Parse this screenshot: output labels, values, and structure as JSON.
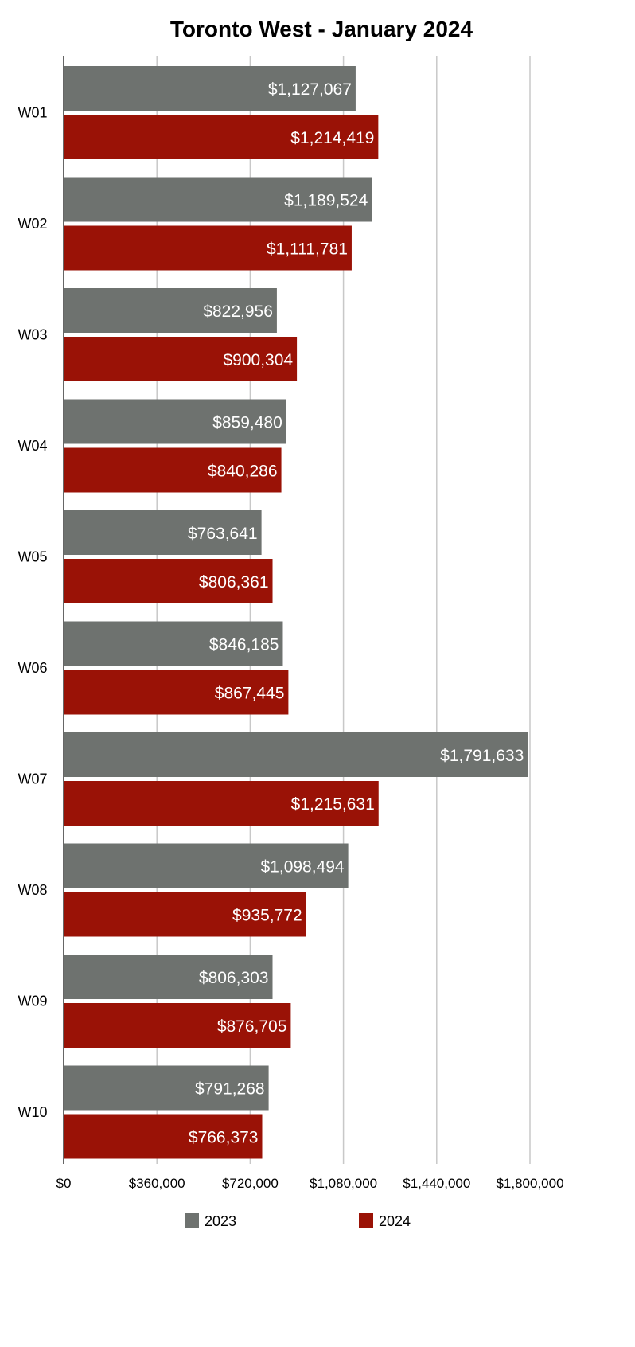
{
  "chart_data": {
    "type": "bar",
    "orientation": "horizontal",
    "title": "Toronto West - January 2024",
    "categories": [
      "W01",
      "W02",
      "W03",
      "W04",
      "W05",
      "W06",
      "W07",
      "W08",
      "W09",
      "W10"
    ],
    "series": [
      {
        "name": "2023",
        "color": "#6e726f",
        "values": [
          1127067,
          1189524,
          822956,
          859480,
          763641,
          846185,
          1791633,
          1098494,
          806303,
          791268
        ],
        "labels": [
          "$1,127,067",
          "$1,189,524",
          "$822,956",
          "$859,480",
          "$763,641",
          "$846,185",
          "$1,791,633",
          "$1,098,494",
          "$806,303",
          "$791,268"
        ]
      },
      {
        "name": "2024",
        "color": "#9a1206",
        "values": [
          1214419,
          1111781,
          900304,
          840286,
          806361,
          867445,
          1215631,
          935772,
          876705,
          766373
        ],
        "labels": [
          "$1,214,419",
          "$1,111,781",
          "$900,304",
          "$840,286",
          "$806,361",
          "$867,445",
          "$1,215,631",
          "$935,772",
          "$876,705",
          "$766,373"
        ]
      }
    ],
    "xlim": [
      0,
      1800000
    ],
    "ticks": [
      0,
      360000,
      720000,
      1080000,
      1440000,
      1800000
    ],
    "tick_labels": [
      "$0",
      "$360,000",
      "$720,000",
      "$1,080,000",
      "$1,440,000",
      "$1,800,000"
    ],
    "grid": true,
    "legend_position": "bottom"
  }
}
